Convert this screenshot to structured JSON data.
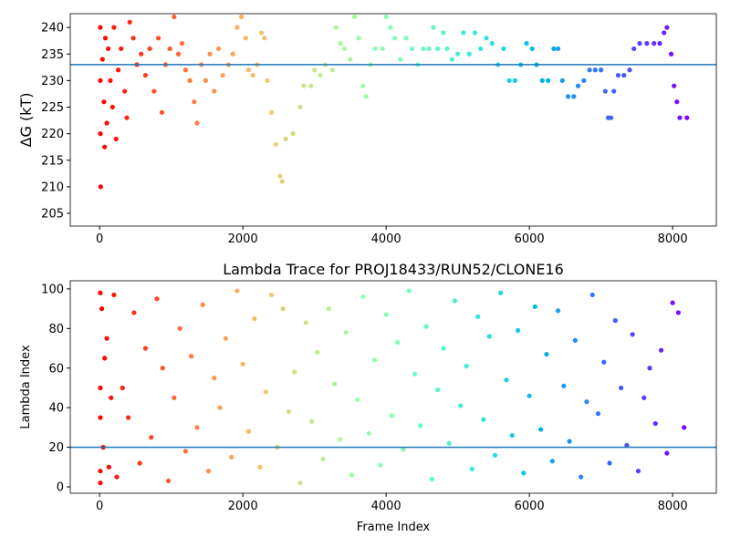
{
  "chart_data": [
    {
      "type": "scatter",
      "ylabel": "ΔG (kT)",
      "colormap": "rainbow_r",
      "hline": 233,
      "hline_color": "#1f77b4",
      "xlim": [
        -410,
        8610
      ],
      "ylim": [
        202.6,
        242.6
      ],
      "xticks": [
        0,
        2000,
        4000,
        6000,
        8000
      ],
      "yticks": [
        205,
        210,
        215,
        220,
        225,
        230,
        235,
        240
      ],
      "x": [
        10,
        10,
        10,
        15,
        40,
        60,
        70,
        80,
        100,
        120,
        150,
        180,
        200,
        230,
        260,
        300,
        350,
        380,
        420,
        470,
        520,
        580,
        640,
        700,
        760,
        820,
        870,
        920,
        980,
        1040,
        1100,
        1150,
        1200,
        1260,
        1320,
        1360,
        1420,
        1480,
        1540,
        1600,
        1660,
        1720,
        1800,
        1860,
        1920,
        1980,
        2040,
        2080,
        2140,
        2200,
        2260,
        2300,
        2340,
        2400,
        2460,
        2520,
        2550,
        2600,
        2700,
        2800,
        2850,
        2950,
        3000,
        3080,
        3150,
        3250,
        3300,
        3360,
        3420,
        3500,
        3560,
        3620,
        3680,
        3720,
        3780,
        3850,
        3950,
        4000,
        4060,
        4120,
        4200,
        4280,
        4360,
        4440,
        4520,
        4600,
        4660,
        4720,
        4800,
        4850,
        4920,
        5000,
        5080,
        5160,
        5240,
        5320,
        5400,
        5480,
        5560,
        5640,
        5720,
        5800,
        5880,
        5960,
        6040,
        6100,
        6180,
        6260,
        6340,
        6400,
        6460,
        6540,
        6620,
        6680,
        6760,
        6840,
        6920,
        7000,
        7060,
        7100,
        7140,
        7180,
        7240,
        7320,
        7400,
        7460,
        7540,
        7640,
        7740,
        7820,
        7880,
        7920,
        7980,
        8020,
        8060,
        8100,
        8200
      ],
      "values": [
        240,
        230,
        220,
        210,
        234,
        226,
        217.5,
        238,
        222,
        236,
        230,
        225,
        240,
        219,
        232,
        236,
        228,
        223,
        241,
        238,
        233,
        235,
        231,
        236,
        228,
        238,
        224,
        233,
        236,
        242,
        235,
        237,
        232,
        230,
        226,
        222,
        233,
        230,
        235,
        228,
        236,
        231,
        233,
        235,
        240,
        242,
        238,
        232,
        231,
        233,
        239,
        238,
        230,
        224,
        218,
        212,
        211,
        219,
        220,
        225,
        229,
        229,
        232,
        231,
        233,
        232,
        240,
        237,
        236,
        234,
        242,
        238,
        229,
        227,
        233,
        236,
        236,
        242,
        240,
        238,
        234,
        238,
        236,
        233,
        236,
        236,
        240,
        236,
        239,
        236,
        234,
        235,
        239,
        235,
        239,
        236,
        238,
        237,
        233,
        236,
        230,
        230,
        233,
        237,
        236,
        233,
        230,
        230,
        236,
        236,
        230,
        227,
        227,
        229,
        230,
        232,
        232,
        232,
        228,
        223,
        223,
        228,
        231,
        231,
        232,
        236,
        237,
        237,
        237,
        237,
        239,
        240,
        235,
        229,
        226,
        223,
        223
      ]
    },
    {
      "type": "scatter",
      "title": "Lambda Trace for PROJ18433/RUN52/CLONE16",
      "xlabel": "Frame Index",
      "ylabel": "Lambda Index",
      "colormap": "rainbow_r",
      "hline": 20,
      "hline_color": "#1f77b4",
      "xlim": [
        -410,
        8610
      ],
      "ylim": [
        -3.2,
        104.1
      ],
      "xticks": [
        0,
        2000,
        4000,
        6000,
        8000
      ],
      "yticks": [
        0,
        20,
        40,
        60,
        80,
        100
      ],
      "x": [
        10,
        10,
        10,
        10,
        10,
        30,
        50,
        70,
        100,
        130,
        160,
        200,
        240,
        320,
        400,
        480,
        560,
        640,
        720,
        800,
        880,
        960,
        1040,
        1120,
        1200,
        1280,
        1360,
        1440,
        1520,
        1600,
        1680,
        1760,
        1840,
        1920,
        2000,
        2080,
        2160,
        2240,
        2320,
        2400,
        2480,
        2560,
        2640,
        2720,
        2800,
        2880,
        2960,
        3040,
        3120,
        3200,
        3280,
        3360,
        3440,
        3520,
        3600,
        3680,
        3760,
        3840,
        3920,
        4000,
        4080,
        4160,
        4240,
        4320,
        4400,
        4480,
        4560,
        4640,
        4720,
        4800,
        4880,
        4960,
        5040,
        5120,
        5200,
        5280,
        5360,
        5440,
        5520,
        5600,
        5680,
        5760,
        5840,
        5920,
        6000,
        6080,
        6160,
        6240,
        6320,
        6400,
        6480,
        6560,
        6640,
        6720,
        6800,
        6880,
        6960,
        7040,
        7120,
        7200,
        7280,
        7360,
        7440,
        7520,
        7600,
        7680,
        7760,
        7840,
        7920,
        8000,
        8080,
        8160
      ],
      "values": [
        98,
        50,
        35,
        8,
        2,
        90,
        20,
        65,
        75,
        10,
        45,
        97,
        5,
        50,
        35,
        88,
        12,
        70,
        25,
        95,
        60,
        3,
        45,
        80,
        18,
        66,
        30,
        92,
        8,
        55,
        40,
        75,
        15,
        99,
        62,
        28,
        85,
        10,
        48,
        97,
        20,
        90,
        38,
        58,
        2,
        83,
        33,
        68,
        14,
        90,
        52,
        24,
        78,
        6,
        44,
        96,
        27,
        64,
        11,
        87,
        36,
        73,
        19,
        99,
        57,
        31,
        81,
        4,
        49,
        70,
        22,
        94,
        41,
        61,
        9,
        86,
        34,
        76,
        16,
        98,
        54,
        26,
        79,
        7,
        46,
        91,
        29,
        67,
        13,
        89,
        51,
        23,
        74,
        5,
        43,
        97,
        37,
        63,
        12,
        84,
        50,
        21,
        77,
        8,
        45,
        60,
        32,
        69,
        17,
        93,
        88,
        30
      ]
    }
  ]
}
